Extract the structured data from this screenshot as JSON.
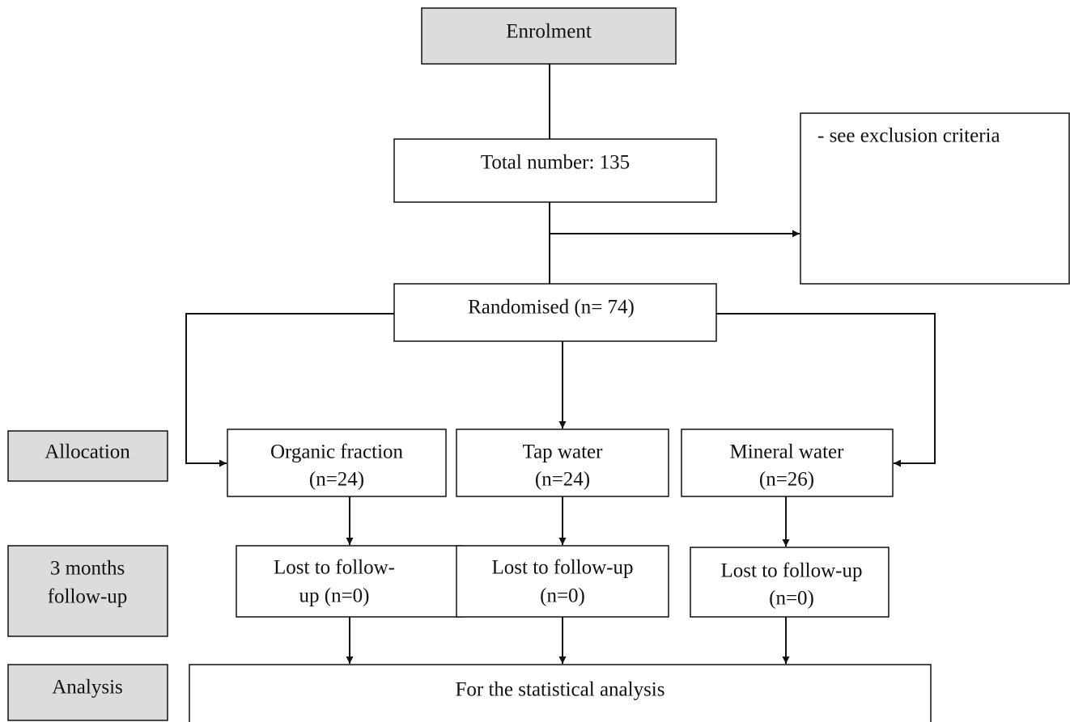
{
  "stages": [
    "Enrolment",
    [
      "3 months",
      "follow-up"
    ],
    "Allocation",
    "Analysis"
  ],
  "nodes": {
    "total": "Total number: 135",
    "exclusion": "- see exclusion criteria",
    "randomised": "Randomised (n= 74)",
    "arms": [
      {
        "lines": [
          "Organic fraction",
          "(n=24)"
        ],
        "lost": [
          "Lost to follow-",
          "up (n=0)"
        ]
      },
      {
        "lines": [
          "Tap water",
          "(n=24)"
        ],
        "lost": [
          "Lost to follow-up",
          "(n=0)"
        ]
      },
      {
        "lines": [
          "Mineral water",
          "(n=26)"
        ],
        "lost": [
          "Lost to follow-up",
          "(n=0)"
        ]
      }
    ],
    "analysis": "For the statistical analysis"
  }
}
